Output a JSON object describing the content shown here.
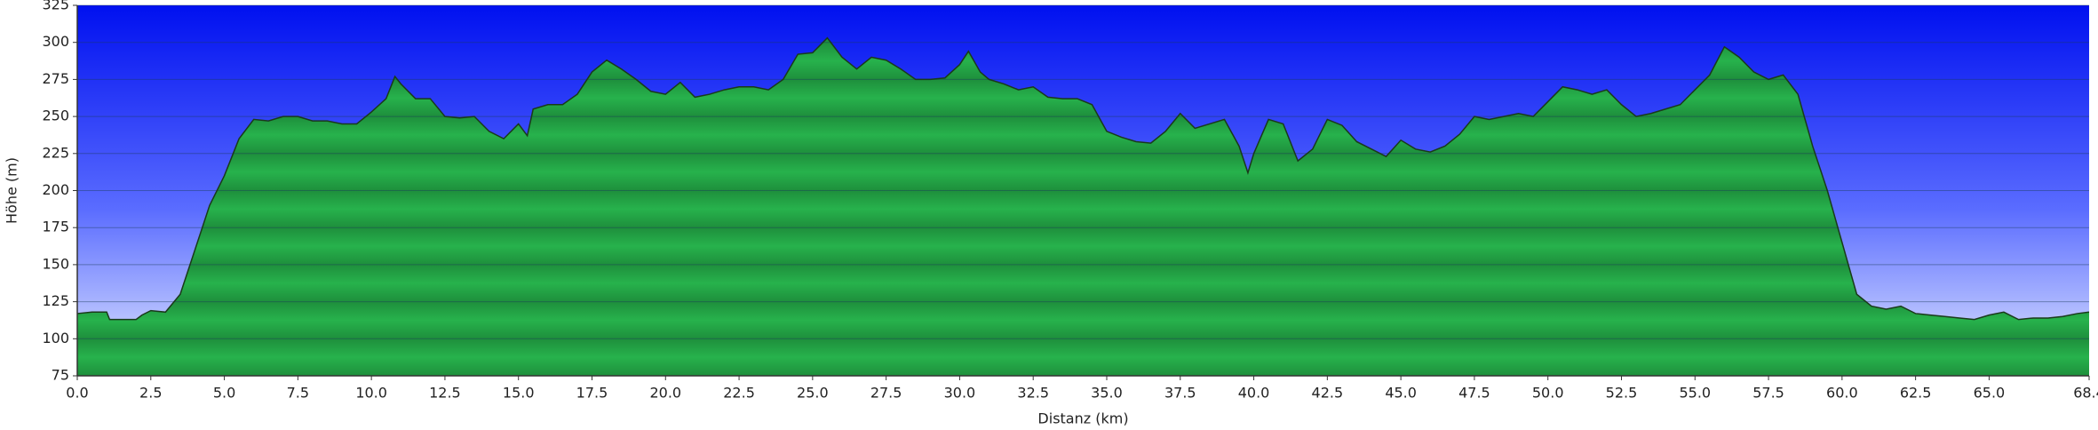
{
  "chart_data": {
    "type": "area",
    "x_label": "Distanz (km)",
    "y_label": "Höhe (m)",
    "color": "#22a846",
    "line_color": "#1a3a1a",
    "xlim": [
      0,
      68.4
    ],
    "ylim": [
      75,
      325
    ],
    "xticks": [
      {
        "value": 0,
        "label": "0.0"
      },
      2.5,
      {
        "value": 5,
        "label": "5.0"
      },
      7.5,
      {
        "value": 10,
        "label": "10.0"
      },
      12.5,
      {
        "value": 15,
        "label": "15.0"
      },
      17.5,
      {
        "value": 20,
        "label": "20.0"
      },
      22.5,
      {
        "value": 25,
        "label": "25.0"
      },
      27.5,
      {
        "value": 30,
        "label": "30.0"
      },
      32.5,
      {
        "value": 35,
        "label": "35.0"
      },
      37.5,
      {
        "value": 40,
        "label": "40.0"
      },
      42.5,
      {
        "value": 45,
        "label": "45.0"
      },
      47.5,
      {
        "value": 50,
        "label": "50.0"
      },
      52.5,
      {
        "value": 55,
        "label": "55.0"
      },
      57.5,
      {
        "value": 60,
        "label": "60.0"
      },
      62.5,
      {
        "value": 65,
        "label": "65.0"
      },
      68.4
    ],
    "yticks": [
      75,
      100,
      125,
      150,
      175,
      200,
      225,
      250,
      275,
      300,
      325
    ],
    "grid": true,
    "x": [
      0,
      0.5,
      1,
      1.1,
      2,
      2.2,
      2.5,
      3,
      3.5,
      4,
      4.5,
      5,
      5.5,
      6,
      6.5,
      7,
      7.5,
      8,
      8.5,
      9,
      9.5,
      10,
      10.5,
      10.8,
      11,
      11.5,
      12,
      12.5,
      13,
      13.5,
      14,
      14.5,
      15,
      15.3,
      15.5,
      16,
      16.5,
      17,
      17.5,
      18,
      18.5,
      19,
      19.5,
      20,
      20.5,
      21,
      21.5,
      22,
      22.5,
      23,
      23.5,
      24,
      24.5,
      25,
      25.5,
      26,
      26.5,
      27,
      27.5,
      28,
      28.5,
      29,
      29.5,
      30,
      30.3,
      30.7,
      31,
      31.5,
      32,
      32.5,
      33,
      33.5,
      34,
      34.5,
      35,
      35.5,
      36,
      36.5,
      37,
      37.5,
      38,
      38.5,
      39,
      39.5,
      39.8,
      40,
      40.5,
      41,
      41.5,
      42,
      42.5,
      43,
      43.5,
      44,
      44.5,
      45,
      45.5,
      46,
      46.5,
      47,
      47.5,
      48,
      48.5,
      49,
      49.5,
      50,
      50.5,
      51,
      51.5,
      52,
      52.5,
      53,
      53.5,
      54,
      54.5,
      55,
      55.5,
      56,
      56.5,
      57,
      57.5,
      58,
      58.5,
      59,
      59.5,
      60,
      60.5,
      61,
      61.5,
      62,
      62.5,
      63,
      63.5,
      64,
      64.5,
      65,
      65.5,
      66,
      66.5,
      67,
      67.5,
      68,
      68.4
    ],
    "values": [
      117,
      118,
      118,
      113,
      113,
      116,
      119,
      118,
      130,
      160,
      190,
      210,
      235,
      248,
      247,
      250,
      250,
      247,
      247,
      245,
      245,
      253,
      262,
      277,
      272,
      262,
      262,
      250,
      249,
      250,
      240,
      235,
      245,
      237,
      255,
      258,
      258,
      265,
      280,
      288,
      282,
      275,
      267,
      265,
      273,
      263,
      265,
      268,
      270,
      270,
      268,
      275,
      292,
      293,
      303,
      290,
      282,
      290,
      288,
      282,
      275,
      275,
      276,
      285,
      294,
      280,
      275,
      272,
      268,
      270,
      263,
      262,
      262,
      258,
      240,
      236,
      233,
      232,
      240,
      252,
      242,
      245,
      248,
      230,
      212,
      225,
      248,
      245,
      220,
      228,
      248,
      244,
      233,
      228,
      223,
      234,
      228,
      226,
      230,
      238,
      250,
      248,
      250,
      252,
      250,
      260,
      270,
      268,
      265,
      268,
      258,
      250,
      252,
      255,
      258,
      268,
      278,
      297,
      290,
      280,
      275,
      278,
      265,
      230,
      200,
      165,
      130,
      122,
      120,
      122,
      117,
      116,
      115,
      114,
      113,
      116,
      118,
      113,
      114,
      114,
      115,
      117,
      118
    ]
  }
}
